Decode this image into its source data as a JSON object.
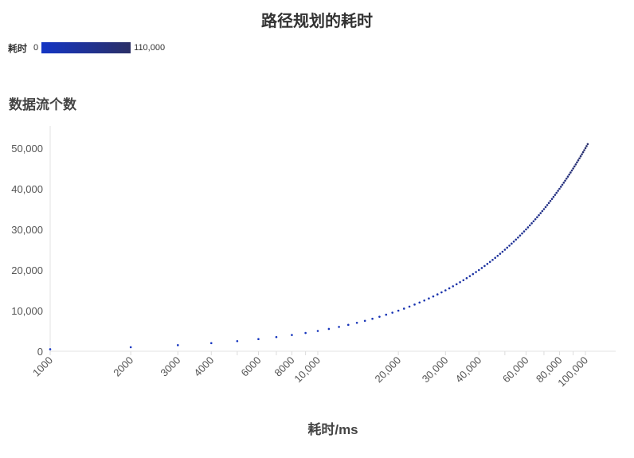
{
  "chart_data": {
    "type": "scatter",
    "title": "路径规划的耗时",
    "xlabel": "耗时/ms",
    "ylabel": "数据流个数",
    "x_scale": "log",
    "xlim": [
      1000,
      120000
    ],
    "ylim": [
      0,
      55000
    ],
    "x_ticks": [
      1000,
      2000,
      3000,
      4000,
      5000,
      6000,
      7000,
      8000,
      9000,
      10000,
      20000,
      30000,
      40000,
      50000,
      60000,
      70000,
      80000,
      90000,
      100000
    ],
    "x_tick_labels": [
      "1000",
      "2000",
      "3000",
      "4000",
      "",
      "6000",
      "",
      "8000",
      "",
      "10,000",
      "20,000",
      "30,000",
      "40,000",
      "",
      "60,000",
      "",
      "80,000",
      "",
      "100,000"
    ],
    "y_ticks": [
      0,
      10000,
      20000,
      30000,
      40000,
      50000
    ],
    "y_tick_labels": [
      "0",
      "10,000",
      "20,000",
      "30,000",
      "40,000",
      "50,000"
    ],
    "grid": false,
    "legend": {
      "title": "耗时",
      "type": "color-gradient",
      "min_label": "0",
      "max_label": "110,000",
      "min": 0,
      "max": 110000,
      "colors": [
        "#1435c4",
        "#2b2f66"
      ],
      "placement": "top-left"
    },
    "points": [
      [
        1000,
        500
      ],
      [
        2000,
        1000
      ],
      [
        3000,
        1500
      ],
      [
        4000,
        2000
      ],
      [
        5000,
        2500
      ],
      [
        6000,
        3000
      ],
      [
        7000,
        3500
      ],
      [
        8000,
        4000
      ],
      [
        9000,
        4500
      ],
      [
        10000,
        5000
      ],
      [
        11000,
        5500
      ],
      [
        12000,
        6000
      ],
      [
        13000,
        6500
      ],
      [
        14000,
        7000
      ],
      [
        15000,
        7500
      ],
      [
        16000,
        8000
      ],
      [
        17000,
        8500
      ],
      [
        18000,
        9000
      ],
      [
        19000,
        9500
      ],
      [
        20000,
        10000
      ],
      [
        21000,
        10500
      ],
      [
        22000,
        11000
      ],
      [
        23000,
        11500
      ],
      [
        24000,
        12000
      ],
      [
        25000,
        12500
      ],
      [
        26000,
        13000
      ],
      [
        27000,
        13500
      ],
      [
        28000,
        14000
      ],
      [
        29000,
        14500
      ],
      [
        30000,
        15000
      ],
      [
        31000,
        15500
      ],
      [
        32000,
        16000
      ],
      [
        33000,
        16500
      ],
      [
        34000,
        17000
      ],
      [
        35000,
        17500
      ],
      [
        36000,
        18000
      ],
      [
        37000,
        18500
      ],
      [
        38000,
        19000
      ],
      [
        39000,
        19500
      ],
      [
        40000,
        20000
      ],
      [
        41000,
        20500
      ],
      [
        42000,
        21000
      ],
      [
        43000,
        21500
      ],
      [
        44000,
        22000
      ],
      [
        45000,
        22500
      ],
      [
        46000,
        23000
      ],
      [
        47000,
        23500
      ],
      [
        48000,
        24000
      ],
      [
        49000,
        24500
      ],
      [
        50000,
        25000
      ],
      [
        51000,
        25500
      ],
      [
        52000,
        26000
      ],
      [
        53000,
        26500
      ],
      [
        54000,
        27000
      ],
      [
        55000,
        27500
      ],
      [
        56000,
        28000
      ],
      [
        57000,
        28500
      ],
      [
        58000,
        29000
      ],
      [
        59000,
        29500
      ],
      [
        60000,
        30000
      ],
      [
        61000,
        30500
      ],
      [
        62000,
        31000
      ],
      [
        63000,
        31500
      ],
      [
        64000,
        32000
      ],
      [
        65000,
        32500
      ],
      [
        66000,
        33000
      ],
      [
        67000,
        33500
      ],
      [
        68000,
        34000
      ],
      [
        69000,
        34500
      ],
      [
        70000,
        35000
      ],
      [
        71000,
        35500
      ],
      [
        72000,
        36000
      ],
      [
        73000,
        36500
      ],
      [
        74000,
        37000
      ],
      [
        75000,
        37500
      ],
      [
        76000,
        38000
      ],
      [
        77000,
        38500
      ],
      [
        78000,
        39000
      ],
      [
        79000,
        39500
      ],
      [
        80000,
        40000
      ],
      [
        81000,
        40500
      ],
      [
        82000,
        41000
      ],
      [
        83000,
        41500
      ],
      [
        84000,
        42000
      ],
      [
        85000,
        42500
      ],
      [
        86000,
        43000
      ],
      [
        87000,
        43500
      ],
      [
        88000,
        44000
      ],
      [
        89000,
        44500
      ],
      [
        90000,
        45000
      ],
      [
        91000,
        45500
      ],
      [
        92000,
        46000
      ],
      [
        93000,
        46500
      ],
      [
        94000,
        47000
      ],
      [
        95000,
        47500
      ],
      [
        96000,
        48000
      ],
      [
        97000,
        48500
      ],
      [
        98000,
        49000
      ],
      [
        99000,
        49500
      ],
      [
        100000,
        50000
      ],
      [
        101000,
        50500
      ],
      [
        102000,
        51000
      ]
    ]
  }
}
